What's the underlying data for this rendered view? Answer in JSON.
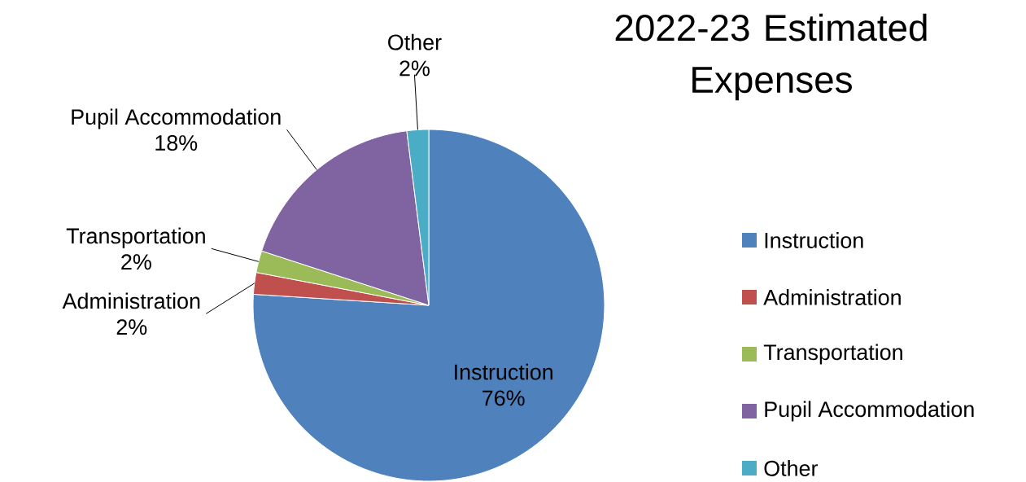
{
  "chart_data": {
    "type": "pie",
    "title": "2022-23 Estimated Expenses",
    "categories": [
      "Instruction",
      "Administration",
      "Transportation",
      "Pupil Accommodation",
      "Other"
    ],
    "values": [
      76,
      2,
      2,
      18,
      2
    ],
    "value_labels": [
      "76%",
      "2%",
      "2%",
      "18%",
      "2%"
    ],
    "colors": [
      "#4f81bd",
      "#c0504d",
      "#9bbb59",
      "#8064a2",
      "#4bacc6"
    ],
    "legend": "right"
  }
}
